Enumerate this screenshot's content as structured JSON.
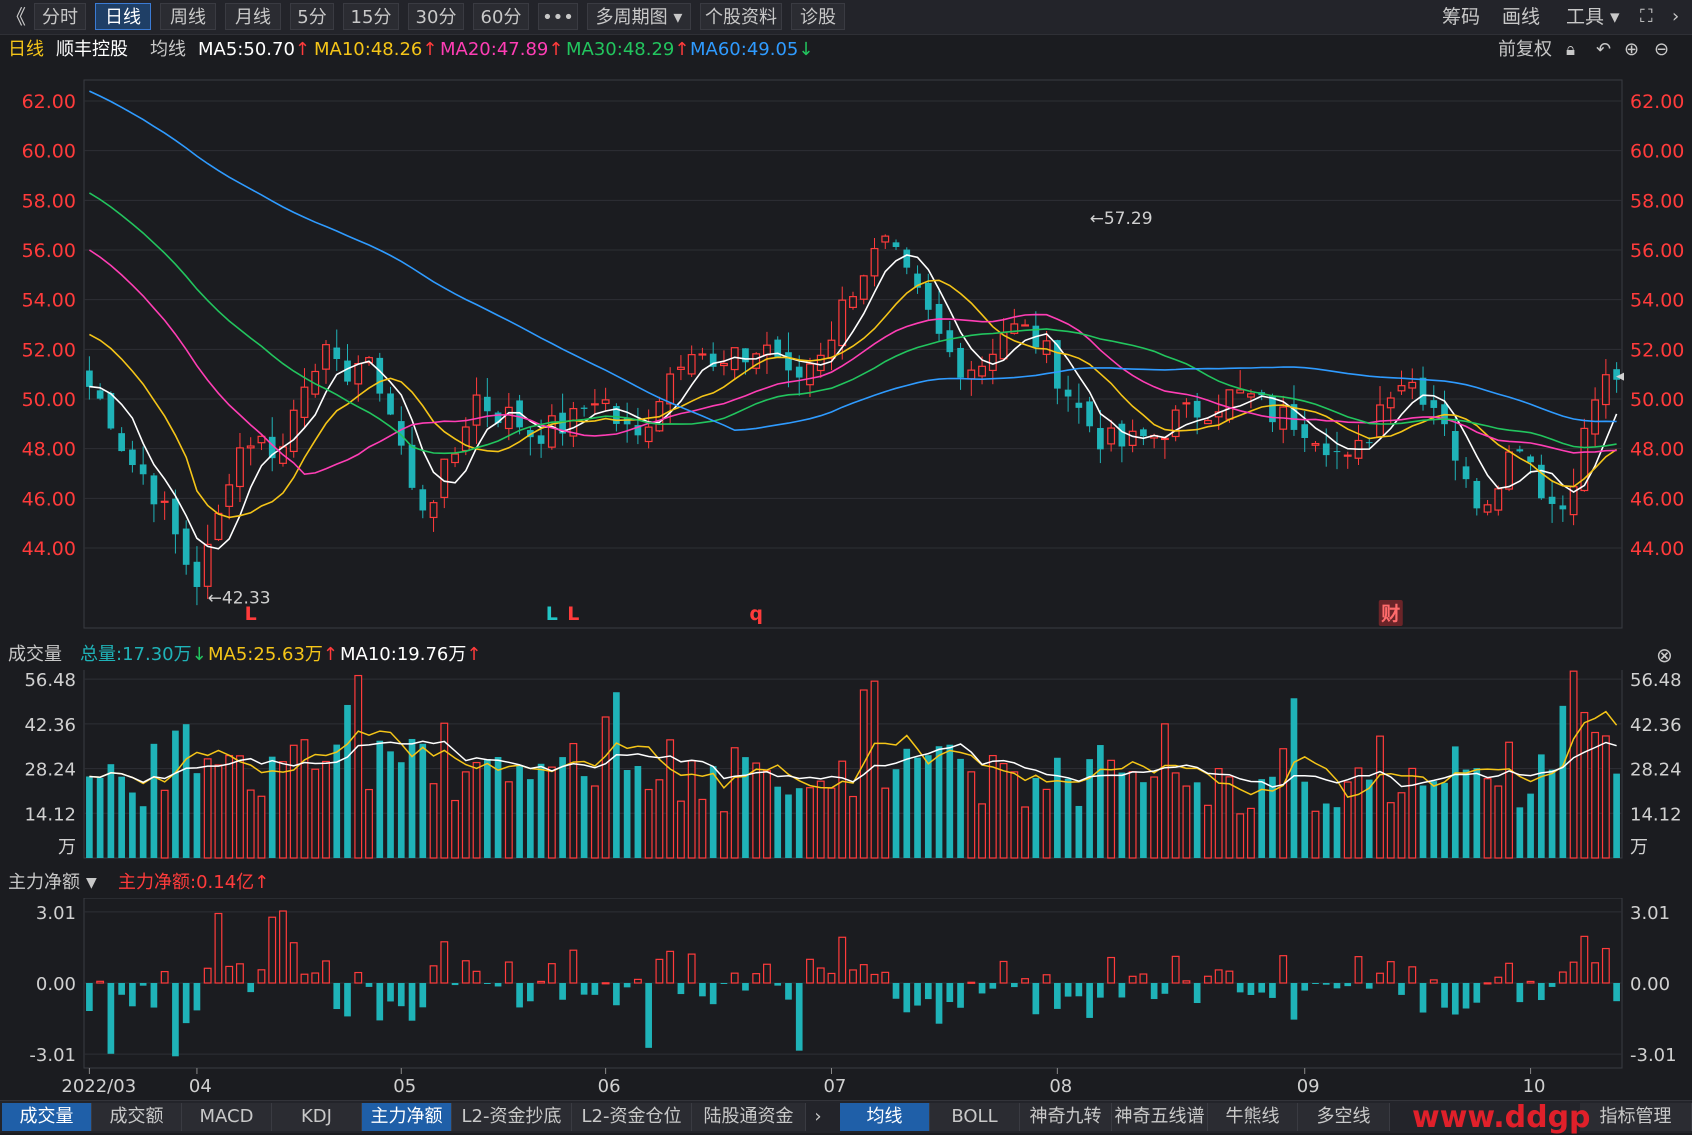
{
  "toolbar": {
    "back_icon": "double-chevron-left-icon",
    "buttons": [
      "分时",
      "日线",
      "周线",
      "月线",
      "5分",
      "15分",
      "30分",
      "60分",
      "•••",
      "多周期图 ▾",
      "个股资料",
      "诊股"
    ],
    "active_index": 1,
    "right": [
      "筹码",
      "画线",
      "工具 ▾"
    ],
    "right_icons": [
      "fullscreen-icon",
      "chevron-right-icon"
    ]
  },
  "ma_bar": {
    "period": "日线",
    "stock_name": "顺丰控股",
    "label": "均线",
    "ma": [
      {
        "text": "MA5:50.70",
        "arrow": "↑",
        "color": "#ffffff",
        "arrow_color": "#ff3b3b"
      },
      {
        "text": "MA10:48.26",
        "arrow": "↑",
        "color": "#f5c518",
        "arrow_color": "#ff3b3b"
      },
      {
        "text": "MA20:47.89",
        "arrow": "↑",
        "color": "#ff3eb5",
        "arrow_color": "#ff3b3b"
      },
      {
        "text": "MA30:48.29",
        "arrow": "↑",
        "color": "#22c55e",
        "arrow_color": "#ff3b3b"
      },
      {
        "text": "MA60:49.05",
        "arrow": "↓",
        "color": "#2f9bff",
        "arrow_color": "#22c55e"
      }
    ],
    "right_label": "前复权",
    "right_icons": [
      "lock-icon",
      "undo-icon",
      "zoom-in-icon",
      "zoom-out-icon"
    ]
  },
  "price_chart": {
    "y_ticks": [
      "62.00",
      "60.00",
      "58.00",
      "56.00",
      "54.00",
      "52.00",
      "50.00",
      "48.00",
      "46.00",
      "44.00"
    ],
    "y_values": [
      62,
      60,
      58,
      56,
      54,
      52,
      50,
      48,
      46,
      44
    ],
    "high_label": "←57.29",
    "low_label": "←42.33",
    "markers": [
      {
        "text": "L",
        "color": "#ff3b3b",
        "day": 15
      },
      {
        "text": "L",
        "color": "#22c5c5",
        "day": 43
      },
      {
        "text": "L",
        "color": "#ff3b3b",
        "day": 45
      },
      {
        "text": "q",
        "color": "#ff3b3b",
        "day": 62
      },
      {
        "text": "财",
        "color": "#ff6b6b",
        "day": 121
      }
    ]
  },
  "volume_panel": {
    "title": "成交量",
    "total": "总量:17.30万",
    "total_arrow": "↓",
    "ma5": "MA5:25.63万",
    "ma5_arrow": "↑",
    "ma10": "MA10:19.76万",
    "ma10_arrow": "↑",
    "y_ticks": [
      "56.48",
      "42.36",
      "28.24",
      "14.12"
    ],
    "unit": "万",
    "close_icon": "close-circle-icon"
  },
  "capital_panel": {
    "title": "主力净额",
    "dropdown_icon": "caret-down-icon",
    "value": "主力净额:0.14亿",
    "arrow": "↑",
    "y_ticks": [
      "3.01",
      "0.00",
      "-3.01"
    ]
  },
  "x_axis": {
    "labels": [
      {
        "text": "2022/03",
        "day": 0
      },
      {
        "text": "04",
        "day": 10
      },
      {
        "text": "05",
        "day": 29
      },
      {
        "text": "06",
        "day": 48
      },
      {
        "text": "07",
        "day": 69
      },
      {
        "text": "08",
        "day": 90
      },
      {
        "text": "09",
        "day": 113
      },
      {
        "text": "10",
        "day": 134
      }
    ]
  },
  "bottom_tabs": {
    "left": [
      "成交量",
      "成交额",
      "MACD",
      "KDJ",
      "主力净额",
      "L2-资金抄底",
      "L2-资金仓位",
      "陆股通资金"
    ],
    "left_active": [
      0,
      4
    ],
    "right": [
      "均线",
      "BOLL",
      "神奇九转",
      "神奇五线谱",
      "牛熊线",
      "多空线"
    ],
    "right_active": [
      0
    ],
    "last": "指标管理",
    "arrow_icon": "chevron-right-icon"
  },
  "watermark": "www.ddgp",
  "colors": {
    "up": "#ff3b3b",
    "down": "#1fb3b8",
    "grid": "#2e2f35",
    "axis_text_red": "#ff3b3b",
    "axis_text": "#d0d0d0"
  },
  "chart_data": {
    "type": "candlestick",
    "symbol": "顺丰控股",
    "period": "daily",
    "days": 143,
    "y_range": [
      41.5,
      62.5
    ],
    "anchors": [
      [
        0,
        50.5
      ],
      [
        2,
        49.5
      ],
      [
        4,
        47.6
      ],
      [
        6,
        46.8
      ],
      [
        8,
        45.3
      ],
      [
        10,
        43.5
      ],
      [
        11,
        42.5
      ],
      [
        13,
        44.5
      ],
      [
        15,
        47.8
      ],
      [
        17,
        48.5
      ],
      [
        20,
        47.8
      ],
      [
        22,
        50.6
      ],
      [
        24,
        52.0
      ],
      [
        26,
        50.9
      ],
      [
        28,
        51.5
      ],
      [
        30,
        50.8
      ],
      [
        32,
        48.8
      ],
      [
        34,
        45.5
      ],
      [
        36,
        46.3
      ],
      [
        38,
        47.8
      ],
      [
        40,
        50.2
      ],
      [
        42,
        49.5
      ],
      [
        44,
        49.3
      ],
      [
        46,
        48.6
      ],
      [
        48,
        48.8
      ],
      [
        50,
        49.0
      ],
      [
        53,
        50.3
      ],
      [
        55,
        49.0
      ],
      [
        57,
        48.3
      ],
      [
        59,
        50.0
      ],
      [
        61,
        51.5
      ],
      [
        63,
        52.5
      ],
      [
        65,
        51.0
      ],
      [
        67,
        51.5
      ],
      [
        69,
        51.8
      ],
      [
        71,
        52.3
      ],
      [
        73,
        50.5
      ],
      [
        75,
        51.5
      ],
      [
        77,
        52.5
      ],
      [
        79,
        54.3
      ],
      [
        81,
        55.5
      ],
      [
        83,
        56.2
      ],
      [
        85,
        54.8
      ],
      [
        87,
        53.5
      ],
      [
        89,
        52.0
      ],
      [
        91,
        51.3
      ],
      [
        93,
        51.5
      ],
      [
        95,
        52.8
      ],
      [
        97,
        52.8
      ],
      [
        99,
        52.2
      ],
      [
        101,
        50.8
      ],
      [
        103,
        49.5
      ],
      [
        105,
        48.5
      ],
      [
        107,
        48.1
      ],
      [
        109,
        48.3
      ],
      [
        111,
        48.6
      ],
      [
        113,
        49.2
      ],
      [
        115,
        49.5
      ],
      [
        117,
        49.8
      ],
      [
        119,
        50.2
      ],
      [
        121,
        50.0
      ],
      [
        123,
        49.4
      ],
      [
        125,
        49.2
      ],
      [
        127,
        48.9
      ],
      [
        129,
        48.2
      ],
      [
        131,
        47.3
      ],
      [
        133,
        48.5
      ],
      [
        135,
        50.5
      ],
      [
        137,
        50.9
      ],
      [
        139,
        50.2
      ],
      [
        141,
        49.3
      ],
      [
        143,
        46.5
      ],
      [
        145,
        45.8
      ],
      [
        147,
        47.3
      ],
      [
        149,
        48.5
      ],
      [
        151,
        46.5
      ],
      [
        153,
        45.3
      ],
      [
        155,
        47.8
      ],
      [
        157,
        50.5
      ],
      [
        159,
        51.0
      ],
      [
        160,
        50.7
      ]
    ],
    "series": [
      {
        "name": "MA5",
        "color": "#ffffff",
        "value": 50.7
      },
      {
        "name": "MA10",
        "color": "#f5c518",
        "value": 48.26
      },
      {
        "name": "MA20",
        "color": "#ff3eb5",
        "value": 47.89
      },
      {
        "name": "MA30",
        "color": "#22c55e",
        "value": 48.29
      },
      {
        "name": "MA60",
        "color": "#2f9bff",
        "value": 49.05
      }
    ],
    "high": 57.29,
    "low": 42.33,
    "volume_range": [
      0,
      60
    ],
    "capital_range": [
      -3.6,
      3.6
    ]
  }
}
